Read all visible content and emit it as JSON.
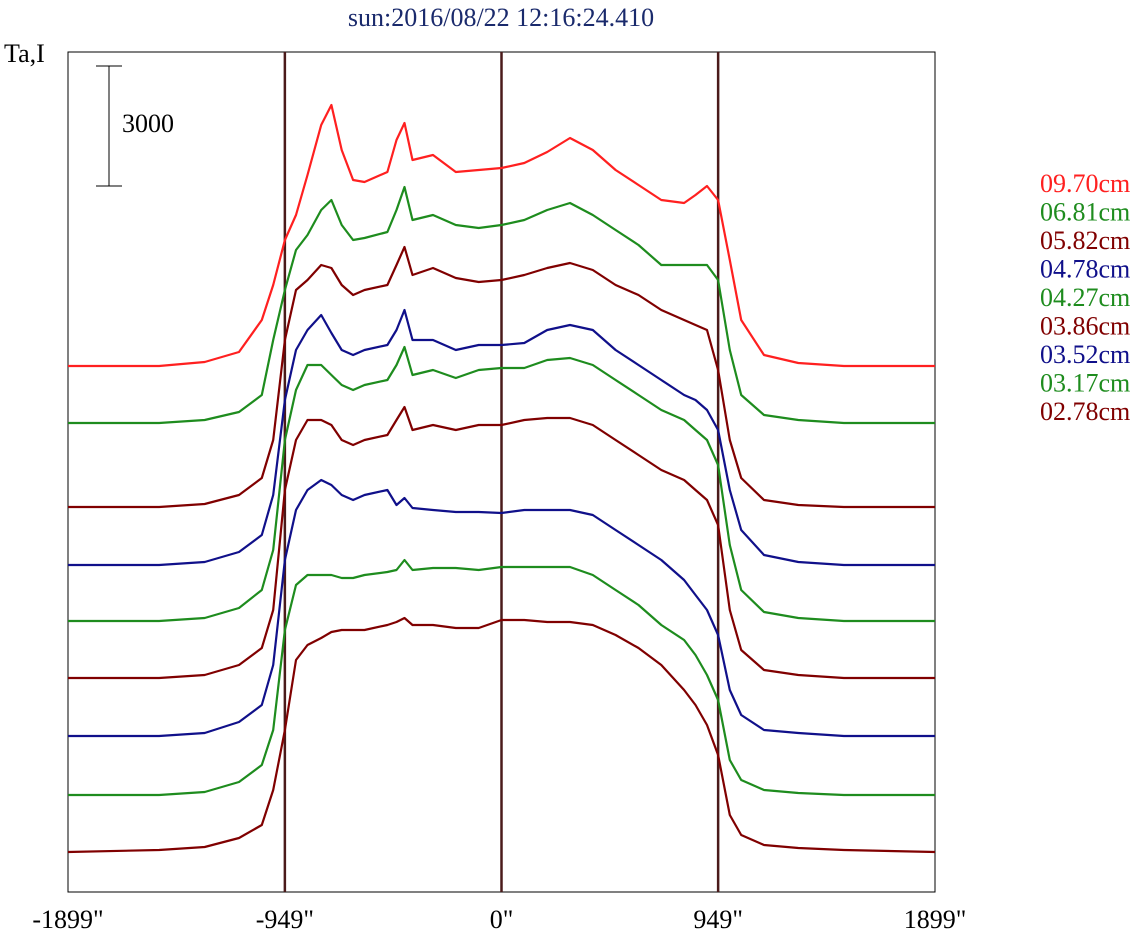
{
  "chart_data": {
    "type": "line",
    "title": "sun:2016/08/22 12:16:24.410",
    "y_label": "Ta,I",
    "scale_bar": 3000,
    "xlim": [
      -1899,
      1899
    ],
    "ylim": [
      0,
      21000
    ],
    "xticks": [
      {
        "value": -1899,
        "label": "-1899\""
      },
      {
        "value": -949,
        "label": "-949\""
      },
      {
        "value": 0,
        "label": "0\""
      },
      {
        "value": 949,
        "label": "949\""
      },
      {
        "value": 1899,
        "label": "1899\""
      }
    ],
    "grid": true,
    "x": [
      -1899,
      -1500,
      -1300,
      -1150,
      -1050,
      -1000,
      -949,
      -900,
      -850,
      -790,
      -745,
      -700,
      -650,
      -600,
      -500,
      -460,
      -425,
      -390,
      -300,
      -200,
      -100,
      0,
      100,
      200,
      300,
      400,
      500,
      600,
      700,
      800,
      850,
      900,
      949,
      1000,
      1050,
      1150,
      1300,
      1500,
      1899
    ],
    "series": [
      {
        "name": "09.70cm",
        "color": "#ff2020",
        "values": [
          13150,
          13150,
          13250,
          13500,
          14300,
          15175,
          16300,
          16925,
          17925,
          19175,
          19675,
          18550,
          17800,
          17750,
          18000,
          18800,
          19225,
          18300,
          18425,
          18000,
          18050,
          18100,
          18225,
          18500,
          18850,
          18550,
          18050,
          17675,
          17300,
          17225,
          17425,
          17650,
          17300,
          15800,
          14300,
          13425,
          13225,
          13150,
          13150
        ]
      },
      {
        "name": "06.81cm",
        "color": "#1e8c1e",
        "values": [
          11725,
          11725,
          11800,
          12000,
          12425,
          13800,
          15050,
          16050,
          16425,
          17050,
          17300,
          16675,
          16300,
          16350,
          16500,
          17050,
          17625,
          16800,
          16925,
          16675,
          16600,
          16675,
          16800,
          17050,
          17225,
          16925,
          16550,
          16175,
          15675,
          15675,
          15675,
          15675,
          15300,
          13550,
          12425,
          11925,
          11800,
          11725,
          11725
        ]
      },
      {
        "name": "05.82cm",
        "color": "#800000",
        "values": [
          9625,
          9625,
          9700,
          9925,
          10350,
          11300,
          13800,
          15050,
          15300,
          15675,
          15600,
          15175,
          14925,
          15050,
          15175,
          15675,
          16125,
          15425,
          15600,
          15350,
          15250,
          15300,
          15425,
          15600,
          15725,
          15550,
          15175,
          14925,
          14550,
          14300,
          14175,
          14050,
          13050,
          11300,
          10350,
          9800,
          9675,
          9625,
          9625
        ]
      },
      {
        "name": "04.78cm",
        "color": "#10108a",
        "values": [
          8175,
          8175,
          8250,
          8500,
          8925,
          9925,
          12300,
          13550,
          14050,
          14425,
          13975,
          13550,
          13425,
          13550,
          13675,
          14050,
          14550,
          13800,
          13800,
          13550,
          13675,
          13675,
          13725,
          14050,
          14175,
          14050,
          13550,
          13175,
          12800,
          12425,
          12300,
          12050,
          11550,
          10050,
          9050,
          8425,
          8250,
          8175,
          8175
        ]
      },
      {
        "name": "04.27cm",
        "color": "#1e8c1e",
        "values": [
          6775,
          6775,
          6850,
          7100,
          7550,
          8550,
          11300,
          12550,
          13175,
          13175,
          12925,
          12675,
          12550,
          12675,
          12800,
          13175,
          13625,
          12925,
          13050,
          12850,
          13050,
          13100,
          13100,
          13300,
          13350,
          13175,
          12800,
          12425,
          12050,
          11800,
          11550,
          11300,
          10675,
          8675,
          7550,
          7000,
          6850,
          6775,
          6775
        ]
      },
      {
        "name": "03.86cm",
        "color": "#800000",
        "values": [
          5350,
          5350,
          5425,
          5675,
          6100,
          7050,
          10050,
          11300,
          11800,
          11800,
          11675,
          11300,
          11175,
          11300,
          11425,
          11800,
          12125,
          11550,
          11675,
          11550,
          11675,
          11675,
          11800,
          11850,
          11850,
          11675,
          11300,
          10925,
          10550,
          10300,
          10050,
          9800,
          9175,
          7050,
          6050,
          5550,
          5425,
          5350,
          5350
        ]
      },
      {
        "name": "03.52cm",
        "color": "#10108a",
        "values": [
          3900,
          3900,
          3975,
          4250,
          4675,
          5675,
          8300,
          9550,
          10050,
          10300,
          10175,
          9925,
          9800,
          9925,
          10050,
          9675,
          9850,
          9600,
          9550,
          9500,
          9500,
          9475,
          9550,
          9550,
          9550,
          9425,
          9050,
          8675,
          8300,
          7800,
          7425,
          7050,
          6425,
          5050,
          4425,
          4050,
          3975,
          3900,
          3900
        ]
      },
      {
        "name": "03.17cm",
        "color": "#1e8c1e",
        "values": [
          2425,
          2425,
          2500,
          2750,
          3175,
          4050,
          6550,
          7675,
          7925,
          7925,
          7925,
          7850,
          7850,
          7925,
          8000,
          8050,
          8300,
          8050,
          8100,
          8100,
          8050,
          8125,
          8125,
          8125,
          8125,
          7925,
          7550,
          7175,
          6675,
          6300,
          5925,
          5425,
          4800,
          3300,
          2800,
          2550,
          2475,
          2425,
          2425
        ]
      },
      {
        "name": "02.78cm",
        "color": "#800000",
        "values": [
          1000,
          1050,
          1125,
          1350,
          1675,
          2550,
          4050,
          5800,
          6175,
          6350,
          6500,
          6550,
          6550,
          6550,
          6675,
          6750,
          6850,
          6675,
          6675,
          6600,
          6600,
          6800,
          6800,
          6750,
          6750,
          6675,
          6425,
          6100,
          5675,
          5050,
          4675,
          4175,
          3425,
          1925,
          1425,
          1175,
          1100,
          1050,
          1000
        ]
      }
    ]
  }
}
